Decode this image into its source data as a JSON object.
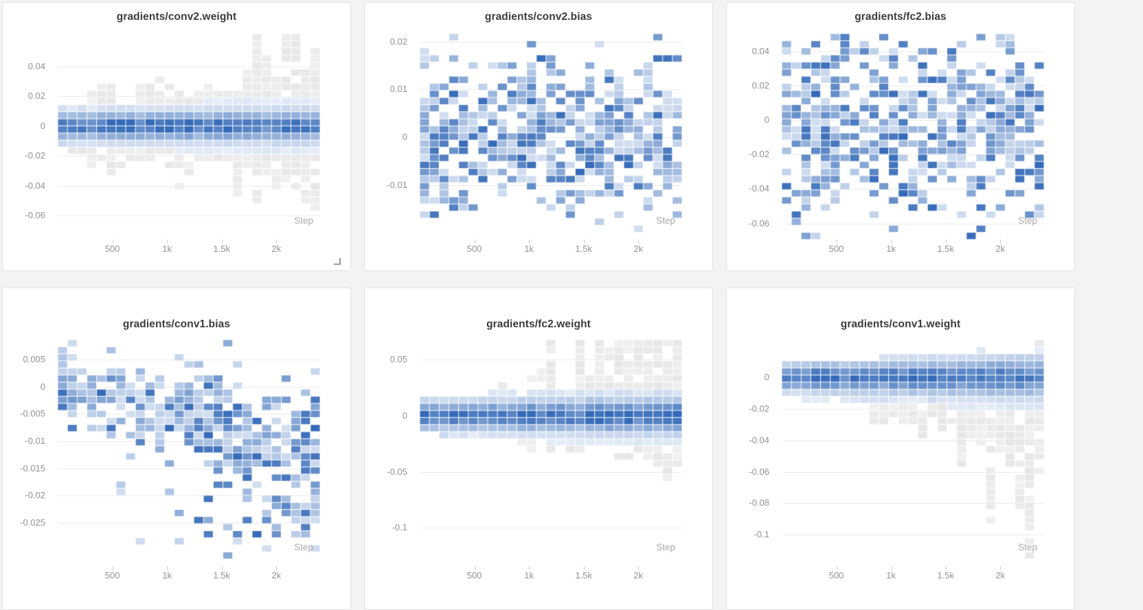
{
  "page": {
    "background": "#f2f3f4",
    "panel_background": "#ffffff",
    "panel_border": "#e0e0e0"
  },
  "colors": {
    "heat_blue_dark": "#346ab8",
    "heat_blue_light": "#e7eef8",
    "heat_gray_light": "#f4f4f4",
    "heat_gray_dark": "#e6e6e7",
    "grid_line": "#ececec",
    "tick_mark": "#cccccc",
    "tick_text": "#8f9193",
    "title_text": "#3a3c3e",
    "step_text": "#a8aaac"
  },
  "chart_data": [
    {
      "title": "gradients/conv2.weight",
      "type": "heatmap",
      "x_label": "Step",
      "x_range": [
        0,
        2400
      ],
      "x_ticks": [
        {
          "value": 500,
          "label": "500"
        },
        {
          "value": 1000,
          "label": "1k"
        },
        {
          "value": 1500,
          "label": "1.5k"
        },
        {
          "value": 2000,
          "label": "2k"
        }
      ],
      "y_range": [
        -0.076,
        0.062
      ],
      "y_ticks": [
        {
          "value": 0.04,
          "label": "0.04"
        },
        {
          "value": 0.02,
          "label": "0.02"
        },
        {
          "value": 0,
          "label": "0"
        },
        {
          "value": -0.02,
          "label": "-0.02"
        },
        {
          "value": -0.04,
          "label": "-0.04"
        },
        {
          "value": -0.06,
          "label": "-0.06"
        }
      ],
      "distribution": {
        "pattern": "band",
        "center": 0,
        "sigma_rows": [
          1.15,
          1.35
        ],
        "spread_up": [
          0.14,
          0.3
        ],
        "spread_down": [
          0.16,
          0.32
        ],
        "grow_exp": 1.2,
        "tall_prob": 0.55,
        "up_bias": 0.6,
        "seed": 7
      }
    },
    {
      "title": "gradients/conv2.bias",
      "type": "heatmap",
      "x_label": "Step",
      "x_range": [
        0,
        2400
      ],
      "x_ticks": [
        {
          "value": 500,
          "label": "500"
        },
        {
          "value": 1000,
          "label": "1k"
        },
        {
          "value": 1500,
          "label": "1.5k"
        },
        {
          "value": 2000,
          "label": "2k"
        }
      ],
      "y_range": [
        -0.0214,
        0.0217
      ],
      "y_ticks": [
        {
          "value": 0.02,
          "label": "0.02"
        },
        {
          "value": 0.01,
          "label": "0.01"
        },
        {
          "value": 0,
          "label": "0"
        },
        {
          "value": -0.01,
          "label": "-0.01"
        }
      ],
      "distribution": {
        "pattern": "scatter",
        "center_start": 0,
        "center_end": 0,
        "sigma_frac": [
          0.2,
          0.22
        ],
        "density": 0.8,
        "seed": 13
      }
    },
    {
      "title": "gradients/fc2.bias",
      "type": "heatmap",
      "x_label": "Step",
      "x_range": [
        0,
        2400
      ],
      "x_ticks": [
        {
          "value": 500,
          "label": "500"
        },
        {
          "value": 1000,
          "label": "1k"
        },
        {
          "value": 1500,
          "label": "1.5k"
        },
        {
          "value": 2000,
          "label": "2k"
        }
      ],
      "y_range": [
        -0.0693,
        0.0502
      ],
      "y_ticks": [
        {
          "value": 0.04,
          "label": "0.04"
        },
        {
          "value": 0.02,
          "label": "0.02"
        },
        {
          "value": 0,
          "label": "0"
        },
        {
          "value": -0.02,
          "label": "-0.02"
        },
        {
          "value": -0.04,
          "label": "-0.04"
        },
        {
          "value": -0.06,
          "label": "-0.06"
        }
      ],
      "distribution": {
        "pattern": "scatter",
        "center_start": 0,
        "center_end": -0.002,
        "sigma_frac": [
          0.25,
          0.27
        ],
        "density": 0.72,
        "seed": 17
      }
    },
    {
      "title": "gradients/conv1.bias",
      "type": "heatmap",
      "x_label": "Step",
      "x_range": [
        0,
        2400
      ],
      "x_ticks": [
        {
          "value": 500,
          "label": "500"
        },
        {
          "value": 1000,
          "label": "1k"
        },
        {
          "value": 1500,
          "label": "1.5k"
        },
        {
          "value": 2000,
          "label": "2k"
        }
      ],
      "y_range": [
        -0.033,
        0.0087
      ],
      "y_ticks": [
        {
          "value": 0.005,
          "label": "0.005"
        },
        {
          "value": 0,
          "label": "0"
        },
        {
          "value": -0.005,
          "label": "-0.005"
        },
        {
          "value": -0.01,
          "label": "-0.01"
        },
        {
          "value": -0.015,
          "label": "-0.015"
        },
        {
          "value": -0.02,
          "label": "-0.02"
        },
        {
          "value": -0.025,
          "label": "-0.025"
        }
      ],
      "distribution": {
        "pattern": "scatter",
        "center_start": 0,
        "center_end": -0.011,
        "sigma_frac": [
          0.1,
          0.16
        ],
        "density": 0.9,
        "tail": {
          "center_frac": 0.78,
          "sigma_frac": 0.1,
          "amp": 0.5
        },
        "seed": 29
      }
    },
    {
      "title": "gradients/fc2.weight",
      "type": "heatmap",
      "x_label": "Step",
      "x_range": [
        0,
        2400
      ],
      "x_ticks": [
        {
          "value": 500,
          "label": "500"
        },
        {
          "value": 1000,
          "label": "1k"
        },
        {
          "value": 1500,
          "label": "1.5k"
        },
        {
          "value": 2000,
          "label": "2k"
        }
      ],
      "y_range": [
        -0.134,
        0.068
      ],
      "y_ticks": [
        {
          "value": 0.05,
          "label": "0.05"
        },
        {
          "value": 0,
          "label": "0"
        },
        {
          "value": -0.05,
          "label": "-0.05"
        },
        {
          "value": -0.1,
          "label": "-0.1"
        }
      ],
      "distribution": {
        "pattern": "band",
        "center": 0,
        "sigma_rows": [
          1.2,
          1.5
        ],
        "spread_up": [
          0.06,
          0.4
        ],
        "spread_down": [
          0.07,
          0.26
        ],
        "grow_exp": 1.6,
        "tall_prob": 0.7,
        "up_bias": 0.8,
        "seed": 19
      }
    },
    {
      "title": "gradients/conv1.weight",
      "type": "heatmap",
      "x_label": "Step",
      "x_range": [
        0,
        2400
      ],
      "x_ticks": [
        {
          "value": 500,
          "label": "500"
        },
        {
          "value": 1000,
          "label": "1k"
        },
        {
          "value": 1500,
          "label": "1.5k"
        },
        {
          "value": 2000,
          "label": "2k"
        }
      ],
      "y_range": [
        -0.12,
        0.024
      ],
      "y_ticks": [
        {
          "value": 0,
          "label": "0"
        },
        {
          "value": -0.02,
          "label": "-0.02"
        },
        {
          "value": -0.04,
          "label": "-0.04"
        },
        {
          "value": -0.06,
          "label": "-0.06"
        },
        {
          "value": -0.08,
          "label": "-0.08"
        },
        {
          "value": -0.1,
          "label": "-0.1"
        }
      ],
      "distribution": {
        "pattern": "band",
        "center": 0,
        "sigma_rows": [
          1.1,
          1.7
        ],
        "spread_up": [
          0.05,
          0.09
        ],
        "spread_down": [
          0.08,
          0.48
        ],
        "grow_exp": 1.4,
        "tall_prob": 0.6,
        "up_bias": 0.12,
        "seed": 23
      }
    }
  ]
}
